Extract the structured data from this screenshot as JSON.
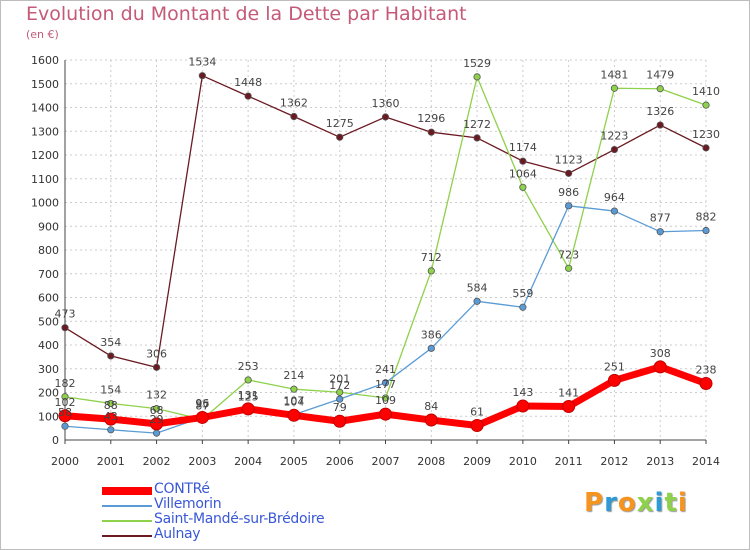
{
  "title": "Evolution du Montant de la Dette par Habitant",
  "unit": "(en €)",
  "brand": "Proxiti",
  "colors": {
    "title": "#c45a78",
    "legend_text": "#3a58d6",
    "grid": "#cccccc",
    "axis": "#444444"
  },
  "chart_data": {
    "type": "line",
    "x": [
      2000,
      2001,
      2002,
      2003,
      2004,
      2005,
      2006,
      2007,
      2008,
      2009,
      2010,
      2011,
      2012,
      2013,
      2014
    ],
    "ylim": [
      0,
      1600
    ],
    "yticks": [
      0,
      100,
      200,
      300,
      400,
      500,
      600,
      700,
      800,
      900,
      1000,
      1100,
      1200,
      1300,
      1400,
      1500,
      1600
    ],
    "grid": true,
    "legend_position": "bottom-left",
    "series": [
      {
        "name": "CONTRé",
        "color": "#ff0000",
        "values": [
          102,
          88,
          68,
          95,
          131,
          104,
          79,
          109,
          84,
          61,
          143,
          141,
          251,
          308,
          238
        ]
      },
      {
        "name": "Villemorin",
        "color": "#5b9bd5",
        "values": [
          58,
          43,
          29,
          96,
          125,
          107,
          172,
          241,
          386,
          584,
          559,
          986,
          964,
          877,
          882
        ]
      },
      {
        "name": "Saint-Mandé-sur-Brédoire",
        "color": "#8ed14a",
        "values": [
          182,
          154,
          132,
          87,
          253,
          214,
          201,
          177,
          712,
          1529,
          1064,
          723,
          1481,
          1479,
          1410
        ]
      },
      {
        "name": "Aulnay",
        "color": "#6b1a22",
        "values": [
          473,
          354,
          306,
          1534,
          1448,
          1362,
          1275,
          1360,
          1296,
          1272,
          1174,
          1123,
          1223,
          1326,
          1230
        ]
      }
    ]
  }
}
